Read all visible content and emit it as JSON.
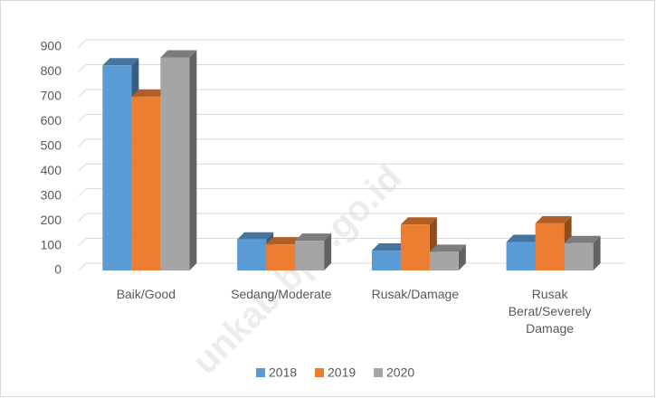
{
  "chart_data": {
    "type": "bar3d",
    "categories": [
      "Baik/Good",
      "Sedang/Moderate",
      "Rusak/Damage",
      "Rusak Berat/Severely Damage"
    ],
    "series": [
      {
        "name": "2018",
        "color": "#5b9bd5",
        "values": [
          826,
          125,
          80,
          115
        ]
      },
      {
        "name": "2019",
        "color": "#ed7d31",
        "values": [
          700,
          105,
          185,
          190
        ]
      },
      {
        "name": "2020",
        "color": "#a5a5a5",
        "values": [
          858,
          120,
          75,
          110
        ]
      }
    ],
    "ylim": [
      0,
      900
    ],
    "yticks": [
      0,
      100,
      200,
      300,
      400,
      500,
      600,
      700,
      800,
      900
    ],
    "grid": true,
    "legend": "bottom",
    "watermark": "unkab.bps.go.id"
  }
}
